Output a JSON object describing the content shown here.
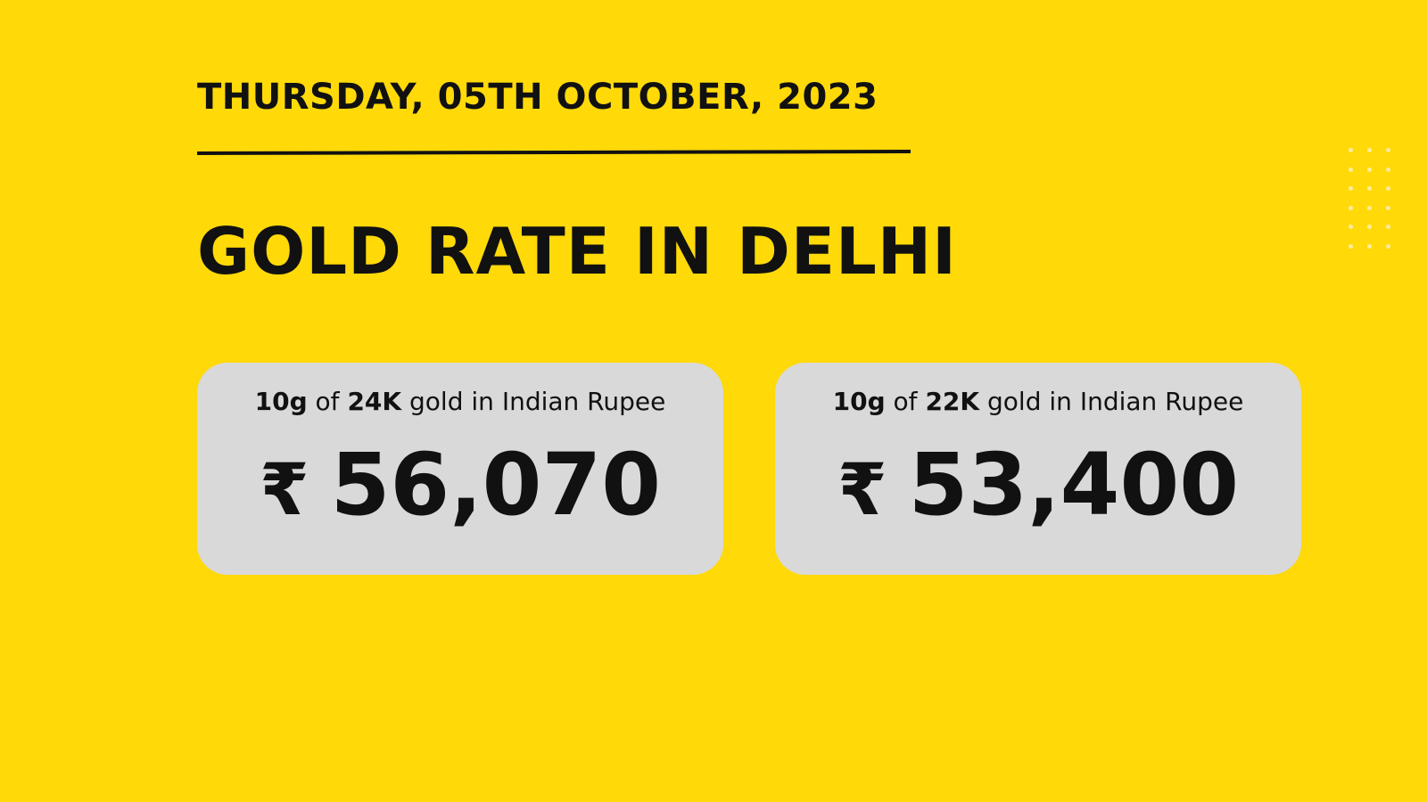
{
  "date": "THURSDAY, 05TH OCTOBER, 2023",
  "title": "GOLD RATE IN DELHI",
  "cards": [
    {
      "weight": "10g",
      "of": "of",
      "purity": "24K",
      "suffix": "gold in Indian Rupee",
      "currency_symbol": "₹",
      "value": "56,070"
    },
    {
      "weight": "10g",
      "of": "of",
      "purity": "22K",
      "suffix": "gold in Indian Rupee",
      "currency_symbol": "₹",
      "value": "53,400"
    }
  ],
  "colors": {
    "background": "#FFD908",
    "card": "#D9D9D9",
    "text": "#111111",
    "dots": "#FFF0B0"
  },
  "decor": {
    "dots_icon": "dot-grid-icon"
  }
}
